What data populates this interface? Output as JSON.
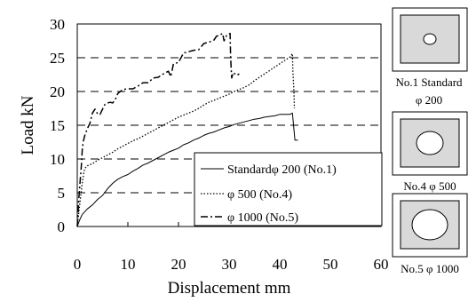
{
  "chart_data": {
    "type": "line",
    "xlabel": "Displacement  mm",
    "ylabel": "Load  kN",
    "xlim": [
      0,
      60
    ],
    "ylim": [
      0,
      30
    ],
    "xticks": [
      "0",
      "10",
      "20",
      "30",
      "40",
      "50",
      "60"
    ],
    "yticks": [
      "0",
      "5",
      "10",
      "15",
      "20",
      "25",
      "30"
    ],
    "grid": "horizontal dashed",
    "legend_position": "lower-right",
    "series": [
      {
        "name": "Standardφ 200 (No.1)",
        "style": "solid",
        "points": [
          [
            0,
            0
          ],
          [
            0.5,
            1
          ],
          [
            1,
            1.8
          ],
          [
            2,
            2.6
          ],
          [
            3,
            3.2
          ],
          [
            4,
            4
          ],
          [
            5,
            4.6
          ],
          [
            6,
            5.6
          ],
          [
            7,
            6.4
          ],
          [
            8,
            7
          ],
          [
            9,
            7.4
          ],
          [
            10,
            7.7
          ],
          [
            11,
            8.2
          ],
          [
            12,
            8.6
          ],
          [
            13,
            9.1
          ],
          [
            14,
            9.4
          ],
          [
            15,
            9.8
          ],
          [
            16,
            10.2
          ],
          [
            17,
            10.6
          ],
          [
            18,
            11
          ],
          [
            19,
            11.3
          ],
          [
            20,
            11.6
          ],
          [
            21,
            12.1
          ],
          [
            22,
            12.4
          ],
          [
            23,
            12.8
          ],
          [
            24,
            13.1
          ],
          [
            25,
            13.5
          ],
          [
            26,
            13.8
          ],
          [
            27,
            14
          ],
          [
            28,
            14.3
          ],
          [
            29,
            14.6
          ],
          [
            30,
            14.8
          ],
          [
            31,
            15.1
          ],
          [
            32,
            15.3
          ],
          [
            33,
            15.5
          ],
          [
            34,
            15.7
          ],
          [
            35,
            15.9
          ],
          [
            36,
            16
          ],
          [
            37,
            16.2
          ],
          [
            38,
            16.3
          ],
          [
            39,
            16.4
          ],
          [
            40,
            16.6
          ],
          [
            41,
            16.6
          ],
          [
            42,
            16.6
          ],
          [
            42.5,
            16.8
          ],
          [
            43,
            12.8
          ],
          [
            43.6,
            12.8
          ]
        ]
      },
      {
        "name": "φ 500  (No.4)",
        "style": "dotted",
        "points": [
          [
            0,
            0
          ],
          [
            0.3,
            2
          ],
          [
            0.6,
            4
          ],
          [
            1,
            6.5
          ],
          [
            1.3,
            8
          ],
          [
            1.5,
            8.6
          ],
          [
            2,
            9
          ],
          [
            3,
            9.3
          ],
          [
            4,
            9.8
          ],
          [
            5,
            10.2
          ],
          [
            6,
            10.6
          ],
          [
            7,
            11
          ],
          [
            8,
            11.5
          ],
          [
            9,
            11.9
          ],
          [
            10,
            12.3
          ],
          [
            11,
            12.7
          ],
          [
            12,
            13
          ],
          [
            13,
            13.4
          ],
          [
            14,
            13.8
          ],
          [
            15,
            14.2
          ],
          [
            16,
            14.6
          ],
          [
            17,
            15
          ],
          [
            18,
            15.4
          ],
          [
            19,
            15.8
          ],
          [
            20,
            16.2
          ],
          [
            21,
            16.5
          ],
          [
            22,
            16.8
          ],
          [
            23,
            17.1
          ],
          [
            24,
            17.5
          ],
          [
            25,
            18
          ],
          [
            26,
            18.4
          ],
          [
            27,
            18.7
          ],
          [
            28,
            19
          ],
          [
            29,
            19.3
          ],
          [
            30,
            19.6
          ],
          [
            31,
            20
          ],
          [
            32,
            20.3
          ],
          [
            33,
            20.6
          ],
          [
            34,
            21
          ],
          [
            35,
            21.6
          ],
          [
            36,
            22.1
          ],
          [
            37,
            22.6
          ],
          [
            38,
            23.1
          ],
          [
            39,
            23.6
          ],
          [
            40,
            24.1
          ],
          [
            41,
            24.6
          ],
          [
            42,
            25.1
          ],
          [
            42.5,
            25.6
          ],
          [
            42.6,
            23
          ],
          [
            42.8,
            20
          ],
          [
            42.9,
            17.5
          ]
        ]
      },
      {
        "name": "φ 1000 (No.5)",
        "style": "dash-dot",
        "points": [
          [
            0,
            0
          ],
          [
            0.3,
            4
          ],
          [
            0.6,
            7
          ],
          [
            0.8,
            9
          ],
          [
            1,
            11.5
          ],
          [
            1.2,
            12.6
          ],
          [
            1.5,
            13.5
          ],
          [
            2,
            14.5
          ],
          [
            2.5,
            15.3
          ],
          [
            3,
            16.8
          ],
          [
            3.5,
            17.4
          ],
          [
            4,
            16.7
          ],
          [
            4.5,
            16.6
          ],
          [
            5,
            17.4
          ],
          [
            5.5,
            18.1
          ],
          [
            6,
            18.3
          ],
          [
            6.5,
            18.4
          ],
          [
            7,
            18.3
          ],
          [
            7.5,
            18.8
          ],
          [
            8,
            19.7
          ],
          [
            9,
            20.3
          ],
          [
            10,
            20.4
          ],
          [
            11,
            20.4
          ],
          [
            12,
            20.8
          ],
          [
            13,
            21.3
          ],
          [
            14,
            21.3
          ],
          [
            15,
            22
          ],
          [
            16,
            22.1
          ],
          [
            17,
            22.6
          ],
          [
            18,
            23
          ],
          [
            18.5,
            22.2
          ],
          [
            19,
            24.1
          ],
          [
            20,
            24.3
          ],
          [
            21,
            25.7
          ],
          [
            22,
            25.9
          ],
          [
            23,
            26.1
          ],
          [
            24,
            26.2
          ],
          [
            25,
            27.1
          ],
          [
            26,
            27.3
          ],
          [
            27,
            27.6
          ],
          [
            27.5,
            28.2
          ],
          [
            28,
            28.3
          ],
          [
            28.7,
            28.6
          ],
          [
            29,
            27.5
          ],
          [
            29.5,
            28.3
          ],
          [
            30.2,
            28.6
          ],
          [
            30.3,
            25
          ],
          [
            30.5,
            22
          ],
          [
            30.8,
            22.8
          ],
          [
            31.5,
            22.4
          ],
          [
            32,
            22.6
          ]
        ]
      }
    ]
  },
  "specimens": [
    {
      "label": "No.1 Standard",
      "sublabel": "φ 200",
      "hole": "small"
    },
    {
      "label": "No.4 φ 500",
      "sublabel": "",
      "hole": "medium"
    },
    {
      "label": "No.5 φ 1000",
      "sublabel": "",
      "hole": "large"
    }
  ],
  "colors": {
    "line": "#000000",
    "specimen_fill": "#d9d9d9",
    "background": "#ffffff"
  }
}
